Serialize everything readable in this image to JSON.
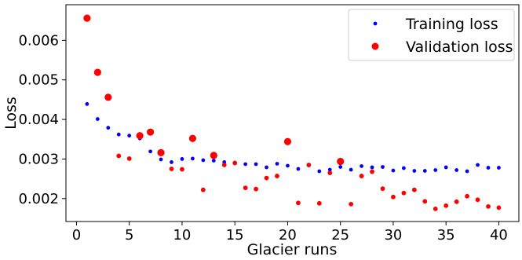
{
  "chart_data": {
    "type": "scatter",
    "xlabel": "Glacier runs",
    "ylabel": "Loss",
    "xlim": [
      -1.0,
      41.9
    ],
    "ylim": [
      0.00142,
      0.0069
    ],
    "xticks": [
      0,
      5,
      10,
      15,
      20,
      25,
      30,
      35,
      40
    ],
    "yticks": [
      0.002,
      0.003,
      0.004,
      0.005,
      0.006
    ],
    "ytick_labels": [
      "0.002",
      "0.003",
      "0.004",
      "0.005",
      "0.006"
    ],
    "grid": false,
    "legend_position": "top-right",
    "series": [
      {
        "name": "Training loss",
        "color": "#0000ff",
        "marker": "small-dot",
        "points": [
          [
            1,
            0.00439
          ],
          [
            2,
            0.00401
          ],
          [
            3,
            0.00379
          ],
          [
            4,
            0.00362
          ],
          [
            5,
            0.00359
          ],
          [
            6,
            0.00352
          ],
          [
            7,
            0.00319
          ],
          [
            8,
            0.00299
          ],
          [
            9,
            0.00292
          ],
          [
            10,
            0.003
          ],
          [
            11,
            0.00301
          ],
          [
            12,
            0.00297
          ],
          [
            13,
            0.00296
          ],
          [
            14,
            0.00292
          ],
          [
            15,
            0.00289
          ],
          [
            16,
            0.00287
          ],
          [
            17,
            0.00287
          ],
          [
            18,
            0.00279
          ],
          [
            19,
            0.00288
          ],
          [
            20,
            0.00283
          ],
          [
            21,
            0.00275
          ],
          [
            22,
            0.00284
          ],
          [
            23,
            0.00269
          ],
          [
            24,
            0.00273
          ],
          [
            25,
            0.0028
          ],
          [
            26,
            0.00273
          ],
          [
            27,
            0.00282
          ],
          [
            28,
            0.00279
          ],
          [
            29,
            0.0028
          ],
          [
            30,
            0.00271
          ],
          [
            31,
            0.00277
          ],
          [
            32,
            0.0027
          ],
          [
            33,
            0.0027
          ],
          [
            34,
            0.00272
          ],
          [
            35,
            0.00279
          ],
          [
            36,
            0.00272
          ],
          [
            37,
            0.00269
          ],
          [
            38,
            0.00285
          ],
          [
            39,
            0.00278
          ],
          [
            40,
            0.00278
          ]
        ]
      },
      {
        "name": "Validation loss",
        "color": "#ff0000",
        "marker": "variable-size-dot",
        "points": [
          [
            1,
            0.00656,
            1
          ],
          [
            2,
            0.00519,
            1
          ],
          [
            3,
            0.00456,
            1
          ],
          [
            4,
            0.00308,
            0
          ],
          [
            5,
            0.00301,
            0
          ],
          [
            6,
            0.00359,
            1
          ],
          [
            7,
            0.00368,
            1
          ],
          [
            8,
            0.00316,
            1
          ],
          [
            9,
            0.00275,
            0
          ],
          [
            10,
            0.00274,
            0
          ],
          [
            11,
            0.00352,
            1
          ],
          [
            12,
            0.00222,
            0
          ],
          [
            13,
            0.00309,
            1
          ],
          [
            14,
            0.00285,
            0
          ],
          [
            15,
            0.0029,
            0
          ],
          [
            16,
            0.00227,
            0
          ],
          [
            17,
            0.00224,
            0
          ],
          [
            18,
            0.00252,
            0
          ],
          [
            19,
            0.00257,
            0
          ],
          [
            20,
            0.00344,
            1
          ],
          [
            21,
            0.00189,
            0
          ],
          [
            22,
            0.00285,
            0
          ],
          [
            23,
            0.00188,
            0
          ],
          [
            24,
            0.00265,
            0
          ],
          [
            25,
            0.00294,
            1
          ],
          [
            26,
            0.00186,
            0
          ],
          [
            27,
            0.00257,
            0
          ],
          [
            28,
            0.00268,
            0
          ],
          [
            29,
            0.00225,
            0
          ],
          [
            30,
            0.00204,
            0
          ],
          [
            31,
            0.00214,
            0
          ],
          [
            32,
            0.00222,
            0
          ],
          [
            33,
            0.00193,
            0
          ],
          [
            34,
            0.00174,
            0
          ],
          [
            35,
            0.00182,
            0
          ],
          [
            36,
            0.00192,
            0
          ],
          [
            37,
            0.00206,
            0
          ],
          [
            38,
            0.00197,
            0
          ],
          [
            39,
            0.0018,
            0
          ],
          [
            40,
            0.00177,
            0
          ]
        ]
      }
    ]
  }
}
